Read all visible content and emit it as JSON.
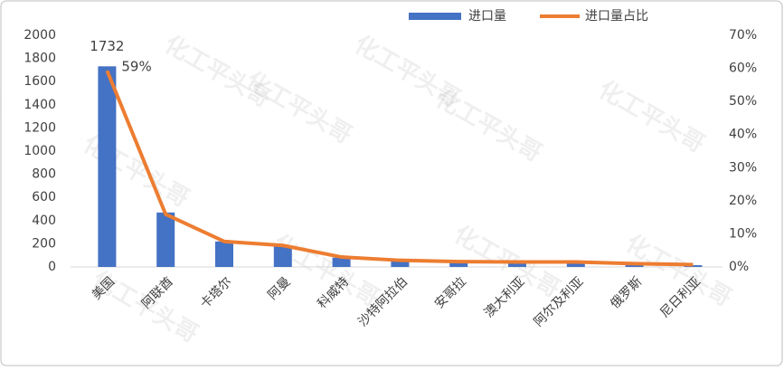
{
  "chart_data": {
    "type": "bar_line",
    "watermark": "化工平头哥",
    "categories": [
      "美国",
      "阿联酋",
      "卡塔尔",
      "阿曼",
      "科威特",
      "沙特阿拉伯",
      "安哥拉",
      "澳大利亚",
      "阿尔及利亚",
      "俄罗斯",
      "尼日利亚"
    ],
    "series": [
      {
        "name": "进口量",
        "type": "bar",
        "color": "#4472c4",
        "values": [
          1732,
          470,
          220,
          180,
          80,
          55,
          40,
          40,
          38,
          25,
          15
        ]
      },
      {
        "name": "进口量占比",
        "type": "line",
        "axis": "y2",
        "color": "#ed7d31",
        "values": [
          59.3,
          15.9,
          7.7,
          6.5,
          3.0,
          2.0,
          1.6,
          1.5,
          1.5,
          1.0,
          0.7
        ],
        "value_labels": [
          "59%",
          null,
          null,
          null,
          null,
          null,
          null,
          null,
          null,
          null,
          null
        ]
      }
    ],
    "ylim": [
      0,
      2000
    ],
    "yticks": [
      0,
      200,
      400,
      600,
      800,
      1000,
      1200,
      1400,
      1600,
      1800,
      2000
    ],
    "y2lim": [
      0,
      70
    ],
    "y2ticks": [
      {
        "value": 0,
        "label": "0%"
      },
      {
        "value": 10,
        "label": "10%"
      },
      {
        "value": 20,
        "label": "20%"
      },
      {
        "value": 30,
        "label": "30%"
      },
      {
        "value": 40,
        "label": "40%"
      },
      {
        "value": 50,
        "label": "50%"
      },
      {
        "value": 60,
        "label": "60%"
      },
      {
        "value": 70,
        "label": "70%"
      }
    ],
    "legend": "top",
    "grid": false
  }
}
